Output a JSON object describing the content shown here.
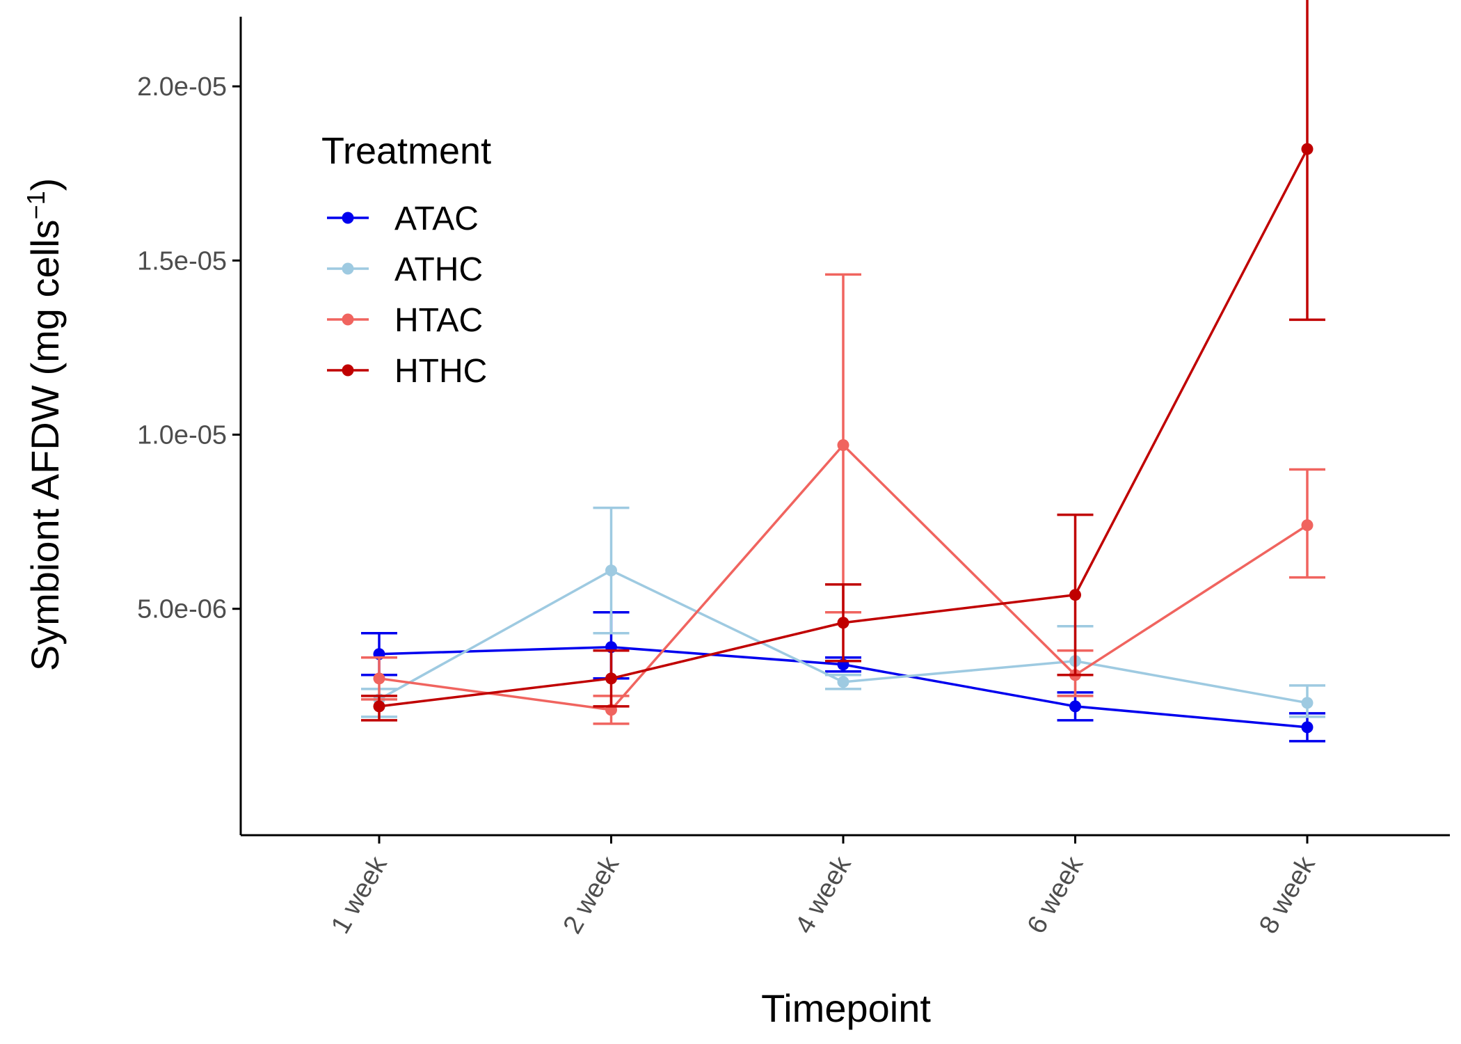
{
  "chart_data": {
    "type": "line",
    "xlabel": "Timepoint",
    "ylabel": "Symbiont AFDW",
    "ylabel_unit": "(mg cells",
    "ylabel_sup": "−1",
    "ylabel_close": ")",
    "categories": [
      "1 week",
      "2 week",
      "4 week",
      "6 week",
      "8 week"
    ],
    "ylim": [
      -1.5e-06,
      2.2e-05
    ],
    "yticks": [
      5e-06,
      1e-05,
      1.5e-05,
      2e-05
    ],
    "ytick_labels": [
      "5.0e-06",
      "1.0e-05",
      "1.5e-05",
      "2.0e-05"
    ],
    "grid": false,
    "legend": {
      "title": "Treatment",
      "position": "top-left"
    },
    "series": [
      {
        "name": "ATAC",
        "color": "#0000ee",
        "values": [
          3.7e-06,
          3.9e-06,
          3.4e-06,
          2.2e-06,
          1.6e-06
        ],
        "err_low": [
          3.1e-06,
          3e-06,
          3.2e-06,
          1.8e-06,
          1.2e-06
        ],
        "err_high": [
          4.3e-06,
          4.9e-06,
          3.6e-06,
          2.6e-06,
          2e-06
        ]
      },
      {
        "name": "ATHC",
        "color": "#9ecae1",
        "values": [
          2.4e-06,
          6.1e-06,
          2.9e-06,
          3.5e-06,
          2.3e-06
        ],
        "err_low": [
          1.9e-06,
          4.3e-06,
          2.7e-06,
          2.5e-06,
          1.9e-06
        ],
        "err_high": [
          2.7e-06,
          7.9e-06,
          3.1e-06,
          4.5e-06,
          2.8e-06
        ]
      },
      {
        "name": "HTAC",
        "color": "#f0645f",
        "values": [
          3e-06,
          2.1e-06,
          9.7e-06,
          3.1e-06,
          7.4e-06
        ],
        "err_low": [
          2.4e-06,
          1.7e-06,
          4.9e-06,
          2.5e-06,
          5.9e-06
        ],
        "err_high": [
          3.6e-06,
          2.5e-06,
          1.46e-05,
          3.8e-06,
          9e-06
        ]
      },
      {
        "name": "HTHC",
        "color": "#c00000",
        "values": [
          2.2e-06,
          3e-06,
          4.6e-06,
          5.4e-06,
          1.82e-05
        ],
        "err_low": [
          1.8e-06,
          2.2e-06,
          3.5e-06,
          3.1e-06,
          1.33e-05
        ],
        "err_high": [
          2.5e-06,
          3.8e-06,
          5.7e-06,
          7.7e-06,
          2.31e-05
        ]
      }
    ]
  }
}
